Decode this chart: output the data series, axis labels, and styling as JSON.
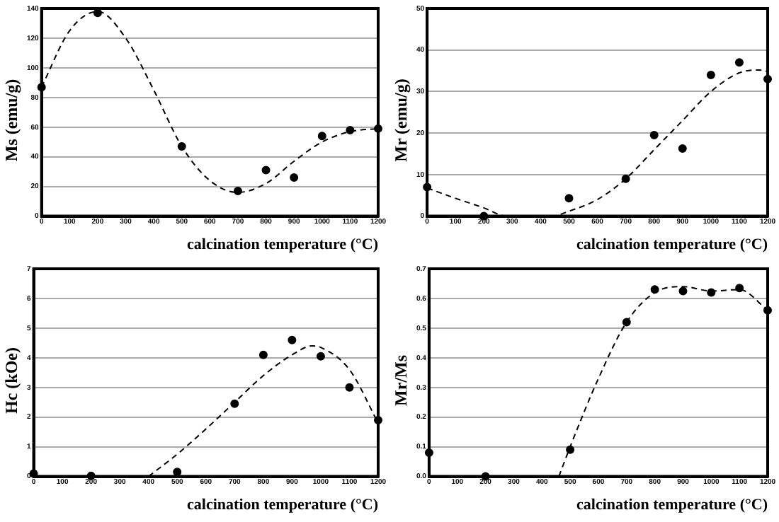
{
  "chart_data": [
    {
      "type": "scatter",
      "xlabel": "calcination temperature (°C)",
      "ylabel": "Ms (emu/g)",
      "xlim": [
        0,
        1200
      ],
      "xticks": [
        0,
        100,
        200,
        300,
        400,
        500,
        600,
        700,
        800,
        900,
        1000,
        1100,
        1200
      ],
      "ylim": [
        0,
        140
      ],
      "yticks": [
        0,
        20,
        40,
        60,
        80,
        100,
        120,
        140
      ],
      "grid": "y",
      "series": [
        {
          "type": "scatter",
          "color": "#000000",
          "marker": "circle",
          "x": [
            0,
            200,
            500,
            700,
            800,
            900,
            1000,
            1100,
            1200
          ],
          "values": [
            87,
            137,
            47,
            17,
            31,
            26,
            54,
            58,
            59
          ]
        },
        {
          "type": "line",
          "color": "#000000",
          "marker": "none",
          "line_style": "dashed",
          "x": [
            0,
            100,
            200,
            300,
            400,
            500,
            600,
            700,
            800,
            900,
            1000,
            1100,
            1200
          ],
          "values": [
            87,
            125,
            138,
            120,
            85,
            47,
            24,
            16,
            22,
            37,
            50,
            57,
            59
          ]
        }
      ]
    },
    {
      "type": "scatter",
      "xlabel": "calcination temperature (°C)",
      "ylabel": "Mr (emu/g)",
      "xlim": [
        0,
        1200
      ],
      "xticks": [
        0,
        100,
        200,
        300,
        400,
        500,
        600,
        700,
        800,
        900,
        1000,
        1100,
        1200
      ],
      "ylim": [
        0,
        50
      ],
      "yticks": [
        0,
        10,
        20,
        30,
        40,
        50
      ],
      "grid": "y",
      "series": [
        {
          "type": "scatter",
          "color": "#000000",
          "marker": "circle",
          "x": [
            0,
            200,
            500,
            700,
            800,
            900,
            1000,
            1100,
            1200
          ],
          "values": [
            7,
            0,
            4.3,
            9,
            19.5,
            16.3,
            34,
            37,
            33
          ]
        },
        {
          "type": "line",
          "color": "#000000",
          "marker": "none",
          "line_style": "dashed",
          "x": [
            0,
            100,
            200,
            280,
            440,
            500,
            600,
            700,
            800,
            900,
            1000,
            1100,
            1170,
            1200
          ],
          "values": [
            6.8,
            4.3,
            2,
            0,
            0,
            1.2,
            4,
            9,
            16,
            23,
            30,
            34.5,
            35.2,
            34.8
          ]
        }
      ]
    },
    {
      "type": "scatter",
      "xlabel": "calcination temperature (°C)",
      "ylabel": "Hc (kOe)",
      "xlim": [
        0,
        1200
      ],
      "xticks": [
        0,
        100,
        200,
        300,
        400,
        500,
        600,
        700,
        800,
        900,
        1000,
        1100,
        1200
      ],
      "ylim": [
        0,
        7
      ],
      "yticks": [
        0,
        1,
        2,
        3,
        4,
        5,
        6,
        7
      ],
      "grid": "y",
      "series": [
        {
          "type": "scatter",
          "color": "#000000",
          "marker": "circle",
          "x": [
            0,
            200,
            500,
            700,
            800,
            900,
            1000,
            1100,
            1200
          ],
          "values": [
            0.1,
            0.02,
            0.15,
            2.45,
            4.1,
            4.6,
            4.05,
            3.0,
            1.9
          ]
        },
        {
          "type": "line",
          "color": "#000000",
          "marker": "none",
          "line_style": "dashed",
          "x": [
            400,
            500,
            600,
            700,
            800,
            900,
            970,
            1000,
            1100,
            1200
          ],
          "values": [
            0,
            0.75,
            1.6,
            2.5,
            3.4,
            4.1,
            4.4,
            4.35,
            3.6,
            1.8
          ]
        }
      ]
    },
    {
      "type": "scatter",
      "xlabel": "calcination temperature (°C)",
      "ylabel": "Mr/Ms",
      "xlim": [
        0,
        1200
      ],
      "xticks": [
        0,
        100,
        200,
        300,
        400,
        500,
        600,
        700,
        800,
        900,
        1000,
        1100,
        1200
      ],
      "ylim": [
        0,
        0.7
      ],
      "yticks": [
        {
          "value": 0,
          "label": "0.0"
        },
        0.1,
        0.2,
        0.3,
        0.4,
        0.5,
        0.6,
        0.7
      ],
      "grid": "y",
      "series": [
        {
          "type": "scatter",
          "color": "#000000",
          "marker": "circle",
          "x": [
            0,
            200,
            500,
            700,
            800,
            900,
            1000,
            1100,
            1200
          ],
          "values": [
            0.08,
            0,
            0.09,
            0.52,
            0.63,
            0.625,
            0.62,
            0.635,
            0.56
          ]
        },
        {
          "type": "line",
          "color": "#000000",
          "marker": "none",
          "line_style": "dashed",
          "x": [
            460,
            500,
            600,
            700,
            800,
            900,
            1000,
            1100,
            1200
          ],
          "values": [
            0,
            0.1,
            0.33,
            0.52,
            0.62,
            0.64,
            0.625,
            0.63,
            0.56
          ]
        }
      ]
    }
  ]
}
